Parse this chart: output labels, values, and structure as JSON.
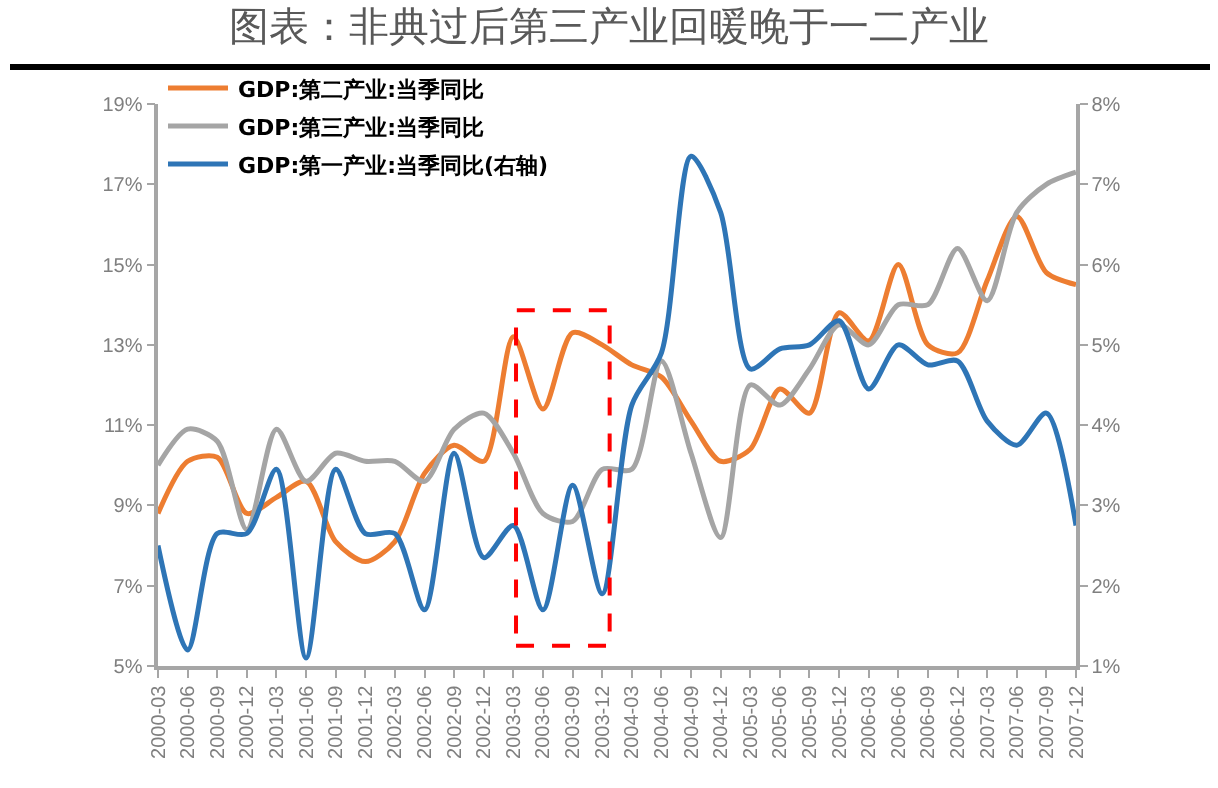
{
  "chart_data": {
    "type": "line",
    "title": "图表：非典过后第三产业回暖晚于一二产业",
    "categories": [
      "2000-03",
      "2000-06",
      "2000-09",
      "2000-12",
      "2001-03",
      "2001-06",
      "2001-09",
      "2001-12",
      "2002-03",
      "2002-06",
      "2002-09",
      "2002-12",
      "2003-03",
      "2003-06",
      "2003-09",
      "2003-12",
      "2004-03",
      "2004-06",
      "2004-09",
      "2004-12",
      "2005-03",
      "2005-06",
      "2005-09",
      "2005-12",
      "2006-03",
      "2006-06",
      "2006-09",
      "2006-12",
      "2007-03",
      "2007-06",
      "2007-09",
      "2007-12"
    ],
    "series": [
      {
        "name": "GDP:第二产业:当季同比",
        "color": "#ed7d31",
        "values": [
          8.8,
          10.1,
          10.2,
          8.8,
          9.2,
          9.6,
          8.1,
          7.6,
          8.1,
          9.8,
          10.5,
          10.1,
          13.2,
          11.4,
          13.3,
          13.0,
          12.5,
          12.2,
          11.1,
          10.1,
          10.4,
          11.9,
          11.3,
          13.8,
          13.1,
          15.0,
          13.0,
          12.8,
          14.6,
          16.2,
          14.8,
          14.5
        ]
      },
      {
        "name": "GDP:第三产业:当季同比",
        "color": "#a5a5a5",
        "values": [
          10.0,
          10.9,
          10.6,
          8.4,
          10.9,
          9.6,
          10.3,
          10.1,
          10.1,
          9.6,
          10.9,
          11.3,
          10.3,
          8.8,
          8.6,
          9.9,
          9.9,
          12.6,
          10.3,
          8.2,
          12.0,
          11.5,
          12.4,
          13.5,
          13.0,
          14.0,
          14.0,
          15.4,
          14.1,
          16.3,
          17.0,
          17.3
        ]
      },
      {
        "name": "GDP:第一产业:当季同比(右轴)",
        "color": "#2e75b6",
        "axis": "y2",
        "values": [
          2.5,
          1.2,
          2.65,
          2.65,
          3.45,
          1.1,
          3.45,
          2.65,
          2.65,
          1.7,
          3.65,
          2.35,
          2.75,
          1.7,
          3.25,
          1.9,
          4.25,
          4.9,
          7.35,
          6.65,
          4.7,
          4.95,
          5.0,
          5.3,
          4.45,
          5.0,
          4.75,
          4.8,
          4.05,
          3.75,
          4.15,
          2.75
        ]
      }
    ],
    "ylim": [
      5,
      19
    ],
    "yticks": [
      {
        "value": 5,
        "label": "5%"
      },
      {
        "value": 7,
        "label": "7%"
      },
      {
        "value": 9,
        "label": "9%"
      },
      {
        "value": 11,
        "label": "11%"
      },
      {
        "value": 13,
        "label": "13%"
      },
      {
        "value": 15,
        "label": "15%"
      },
      {
        "value": 17,
        "label": "17%"
      },
      {
        "value": 19,
        "label": "19%"
      }
    ],
    "y2lim": [
      1,
      8
    ],
    "y2ticks": [
      {
        "value": 1,
        "label": "1%"
      },
      {
        "value": 2,
        "label": "2%"
      },
      {
        "value": 3,
        "label": "3%"
      },
      {
        "value": 4,
        "label": "4%"
      },
      {
        "value": 5,
        "label": "5%"
      },
      {
        "value": 6,
        "label": "6%"
      },
      {
        "value": 7,
        "label": "7%"
      },
      {
        "value": 8,
        "label": "8%"
      }
    ],
    "grid": false,
    "legend": "top left",
    "line_style": "solid"
  }
}
